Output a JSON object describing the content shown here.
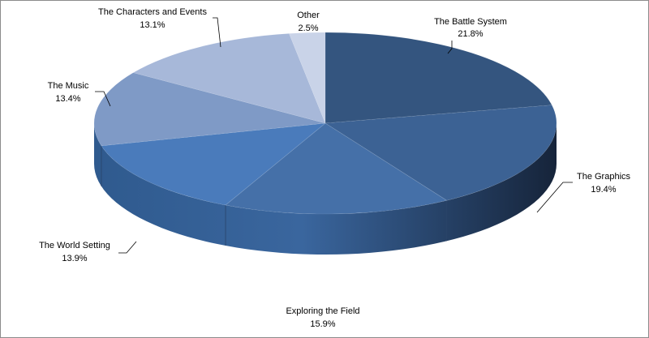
{
  "chart_data": {
    "type": "pie",
    "title": "",
    "slices": [
      {
        "label": "The Battle System",
        "percent_label": "21.8%",
        "value": 21.8,
        "color": "#34557f"
      },
      {
        "label": "The Graphics",
        "percent_label": "19.4%",
        "value": 19.4,
        "color": "#3c6294"
      },
      {
        "label": "Exploring the Field",
        "percent_label": "15.9%",
        "value": 15.9,
        "color": "#4570a8"
      },
      {
        "label": "The World Setting",
        "percent_label": "13.9%",
        "value": 13.9,
        "color": "#4a7bbb"
      },
      {
        "label": "The Music",
        "percent_label": "13.4%",
        "value": 13.4,
        "color": "#7f9ac6"
      },
      {
        "label": "The Characters and Events",
        "percent_label": "13.1%",
        "value": 13.1,
        "color": "#a7b8d9"
      },
      {
        "label": "Other",
        "percent_label": "2.5%",
        "value": 2.5,
        "color": "#c9d3e8"
      }
    ],
    "style": "3d-exploded-none",
    "legend": "none",
    "data_labels": "outside-with-leader-lines"
  }
}
